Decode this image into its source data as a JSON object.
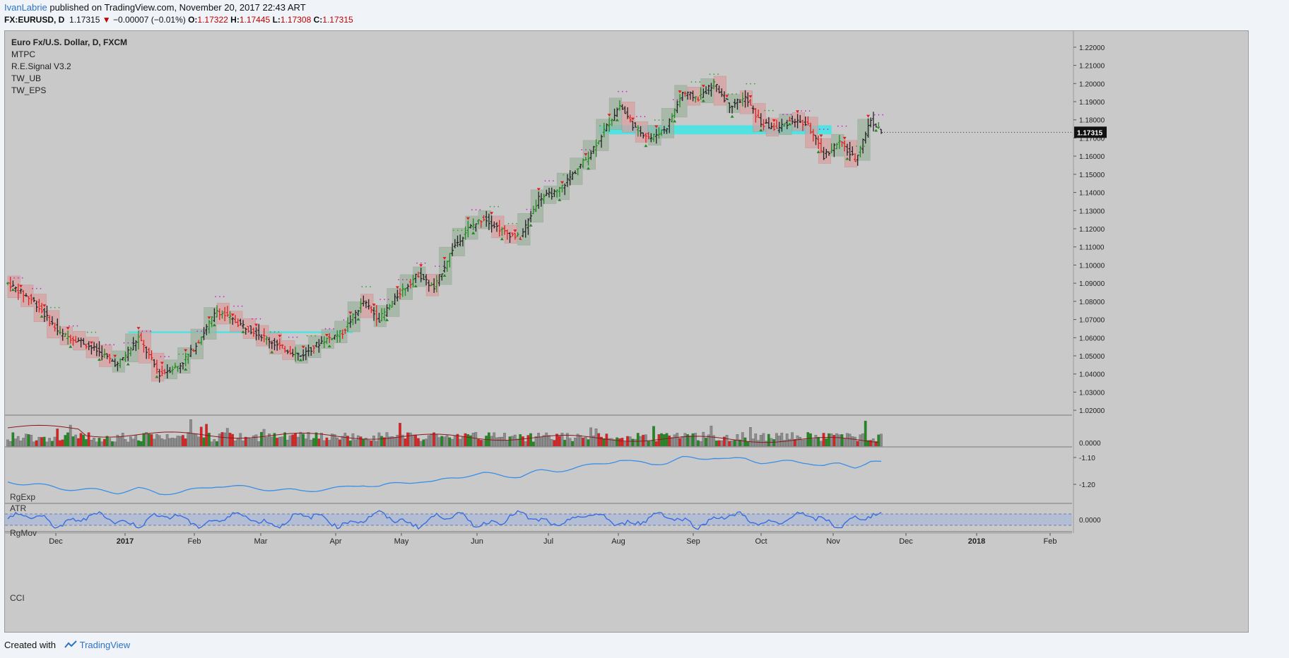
{
  "header": {
    "author": "IvanLabrie",
    "published": "published on TradingView.com, November 20, 2017 22:43 ART",
    "symbol": "FX:EURUSD, D",
    "last": "1.17315",
    "change_arrow": "▼",
    "change": "−0.00007 (−0.01%)",
    "o_label": "O:",
    "o": "1.17322",
    "h_label": "H:",
    "h": "1.17445",
    "l_label": "L:",
    "l": "1.17308",
    "c_label": "C:",
    "c": "1.17315"
  },
  "legend": {
    "title": "Euro Fx/U.S. Dollar, D, FXCM",
    "studies": [
      "MTPC",
      "R.E.Signal V3.2",
      "TW_UB",
      "TW_EPS"
    ]
  },
  "panes": {
    "volume": [
      "RgExp",
      "ATR"
    ],
    "rgmov": "RgMov",
    "cci": "CCI"
  },
  "footer": {
    "created_with": "Created with",
    "brand": "TradingView"
  },
  "colors": {
    "up": "#1f8a1f",
    "down": "#e02020",
    "neutral": "#222222",
    "box_up": "#9fb49f",
    "box_down": "#d9a0a0",
    "zone": "#3ee6e6",
    "rgmov": "#3a8ee8",
    "cci": "#3a6ee0",
    "atr_line": "#8b1a1a",
    "price_tag": "#111111"
  },
  "chart_data": {
    "type": "candlestick",
    "symbol": "FX:EURUSD",
    "timeframe": "D",
    "x_ticks": [
      "Dec",
      "2017",
      "Feb",
      "Mar",
      "Apr",
      "May",
      "Jun",
      "Jul",
      "Aug",
      "Sep",
      "Oct",
      "Nov",
      "Dec",
      "2018",
      "Feb"
    ],
    "y_ticks": [
      "1.22000",
      "1.21000",
      "1.20000",
      "1.19000",
      "1.18000",
      "1.17000",
      "1.16000",
      "1.15000",
      "1.14000",
      "1.13000",
      "1.12000",
      "1.11000",
      "1.10000",
      "1.09000",
      "1.08000",
      "1.07000",
      "1.06000",
      "1.05000",
      "1.04000",
      "1.03000",
      "1.02000"
    ],
    "ylim": [
      1.015,
      1.225
    ],
    "last_price": "1.17315",
    "price_path": [
      [
        0,
        1.09
      ],
      [
        10,
        1.08
      ],
      [
        20,
        1.062
      ],
      [
        28,
        1.058
      ],
      [
        35,
        1.052
      ],
      [
        42,
        1.045
      ],
      [
        50,
        1.06
      ],
      [
        58,
        1.04
      ],
      [
        66,
        1.045
      ],
      [
        72,
        1.056
      ],
      [
        80,
        1.075
      ],
      [
        88,
        1.068
      ],
      [
        96,
        1.062
      ],
      [
        104,
        1.055
      ],
      [
        112,
        1.05
      ],
      [
        120,
        1.058
      ],
      [
        128,
        1.063
      ],
      [
        136,
        1.08
      ],
      [
        142,
        1.07
      ],
      [
        150,
        1.085
      ],
      [
        157,
        1.095
      ],
      [
        163,
        1.087
      ],
      [
        170,
        1.109
      ],
      [
        176,
        1.12
      ],
      [
        182,
        1.126
      ],
      [
        190,
        1.118
      ],
      [
        196,
        1.115
      ],
      [
        203,
        1.137
      ],
      [
        210,
        1.14
      ],
      [
        216,
        1.15
      ],
      [
        222,
        1.16
      ],
      [
        228,
        1.174
      ],
      [
        234,
        1.188
      ],
      [
        240,
        1.175
      ],
      [
        246,
        1.17
      ],
      [
        252,
        1.176
      ],
      [
        258,
        1.195
      ],
      [
        264,
        1.192
      ],
      [
        270,
        1.2
      ],
      [
        276,
        1.188
      ],
      [
        282,
        1.192
      ],
      [
        288,
        1.178
      ],
      [
        294,
        1.175
      ],
      [
        300,
        1.18
      ],
      [
        306,
        1.177
      ],
      [
        312,
        1.16
      ],
      [
        318,
        1.168
      ],
      [
        324,
        1.158
      ],
      [
        330,
        1.18
      ],
      [
        334,
        1.17315
      ]
    ],
    "support_zones": [
      {
        "from": 226,
        "to": 315,
        "low": 1.172,
        "high": 1.177
      },
      {
        "from": 46,
        "to": 132,
        "low": 1.0625,
        "high": 1.0635
      }
    ],
    "volume_scale": "0.0000",
    "rgmov_ticks": [
      "-1.10",
      "-1.20"
    ],
    "cci_ticks": [
      "0.0000"
    ]
  }
}
